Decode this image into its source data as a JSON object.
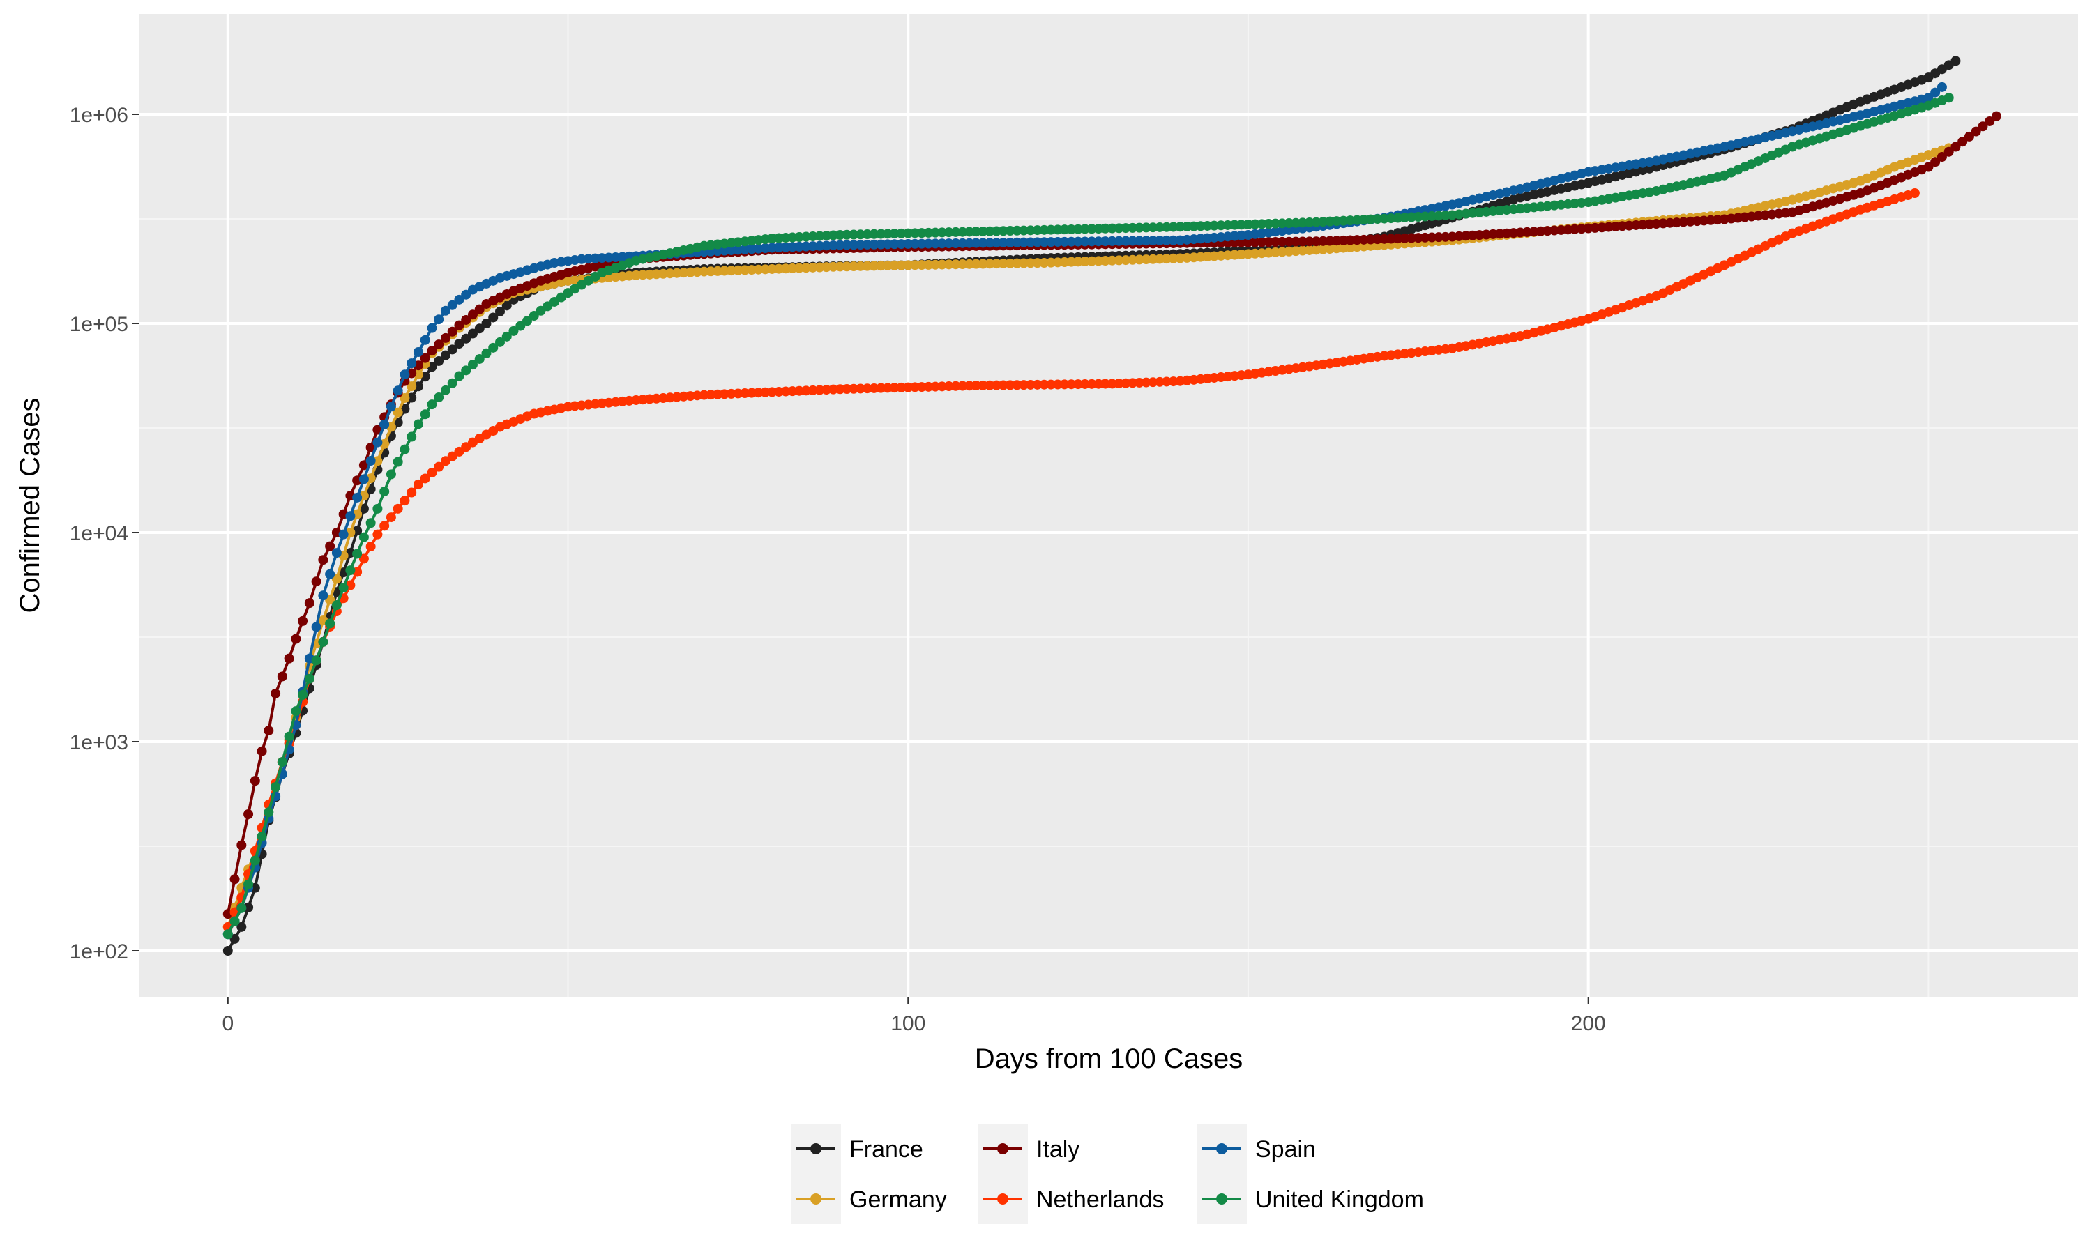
{
  "chart_data": {
    "type": "line",
    "xlabel": "Days from 100 Cases",
    "ylabel": "Confirmed Cases",
    "xlim": [
      -13,
      272
    ],
    "ylim_log10": [
      1.78,
      6.48
    ],
    "log_scale_y": true,
    "grid": true,
    "legend_position": "bottom",
    "x_ticks": [
      0,
      100,
      200
    ],
    "x_tick_labels": [
      "0",
      "100",
      "200"
    ],
    "y_ticks": [
      100,
      1000,
      10000,
      100000,
      1000000
    ],
    "y_tick_labels": [
      "1e+02",
      "1e+03",
      "1e+04",
      "1e+05",
      "1e+06"
    ],
    "series": [
      {
        "name": "France",
        "color": "#222222",
        "x": [
          0,
          2,
          4,
          6,
          8,
          10,
          12,
          14,
          16,
          18,
          20,
          22,
          24,
          26,
          28,
          30,
          34,
          38,
          42,
          46,
          50,
          60,
          70,
          80,
          90,
          100,
          120,
          140,
          160,
          170,
          180,
          190,
          200,
          210,
          220,
          230,
          240,
          250,
          254
        ],
        "y": [
          100,
          130,
          200,
          420,
          700,
          1100,
          1800,
          3000,
          5200,
          8000,
          13000,
          20000,
          29000,
          39000,
          50000,
          62000,
          80000,
          100000,
          130000,
          150000,
          160000,
          175000,
          182000,
          185000,
          188000,
          190000,
          205000,
          215000,
          230000,
          260000,
          320000,
          400000,
          470000,
          560000,
          680000,
          850000,
          1150000,
          1500000,
          1800000
        ]
      },
      {
        "name": "Germany",
        "color": "#d9a025",
        "x": [
          0,
          2,
          4,
          6,
          8,
          10,
          12,
          14,
          16,
          18,
          20,
          22,
          24,
          26,
          28,
          30,
          34,
          38,
          42,
          46,
          50,
          60,
          70,
          80,
          90,
          100,
          120,
          140,
          160,
          180,
          200,
          220,
          230,
          240,
          245,
          250,
          253
        ],
        "y": [
          130,
          200,
          300,
          500,
          800,
          1300,
          2300,
          3800,
          6000,
          10000,
          15000,
          22000,
          32000,
          44000,
          57000,
          72000,
          95000,
          120000,
          140000,
          150000,
          160000,
          170000,
          177000,
          182000,
          187000,
          190000,
          195000,
          205000,
          225000,
          250000,
          290000,
          330000,
          390000,
          480000,
          560000,
          640000,
          690000
        ]
      },
      {
        "name": "Italy",
        "color": "#7a0000",
        "x": [
          0,
          1,
          2,
          3,
          4,
          5,
          6,
          7,
          8,
          9,
          10,
          12,
          14,
          16,
          18,
          20,
          22,
          24,
          26,
          28,
          30,
          34,
          38,
          42,
          46,
          50,
          55,
          60,
          70,
          80,
          100,
          120,
          140,
          160,
          180,
          200,
          220,
          230,
          240,
          250,
          255,
          260
        ],
        "y": [
          150,
          220,
          320,
          450,
          650,
          900,
          1130,
          1700,
          2050,
          2500,
          3100,
          4600,
          7400,
          10000,
          15000,
          21000,
          31000,
          41000,
          53000,
          63000,
          74000,
          98000,
          124000,
          143000,
          160000,
          175000,
          190000,
          203000,
          215000,
          225000,
          232000,
          237000,
          242000,
          247000,
          260000,
          285000,
          315000,
          340000,
          420000,
          560000,
          740000,
          980000
        ]
      },
      {
        "name": "Netherlands",
        "color": "#ff3300",
        "x": [
          0,
          2,
          4,
          6,
          8,
          10,
          12,
          14,
          16,
          18,
          20,
          22,
          25,
          28,
          32,
          36,
          40,
          45,
          50,
          60,
          70,
          80,
          90,
          100,
          110,
          120,
          130,
          140,
          150,
          160,
          170,
          180,
          190,
          200,
          210,
          220,
          230,
          240,
          248
        ],
        "y": [
          130,
          180,
          300,
          500,
          800,
          1200,
          2000,
          3000,
          4200,
          5600,
          7500,
          9800,
          13000,
          17000,
          22000,
          27000,
          32000,
          37000,
          40000,
          43000,
          45500,
          47000,
          48500,
          49500,
          50500,
          51000,
          51500,
          53000,
          57000,
          63000,
          70000,
          76000,
          87000,
          105000,
          135000,
          190000,
          270000,
          350000,
          420000
        ]
      },
      {
        "name": "Spain",
        "color": "#0d5c9e",
        "x": [
          0,
          2,
          4,
          6,
          8,
          10,
          12,
          14,
          16,
          18,
          20,
          22,
          24,
          26,
          28,
          30,
          32,
          34,
          36,
          38,
          40,
          44,
          48,
          52,
          60,
          70,
          80,
          90,
          100,
          120,
          140,
          150,
          160,
          170,
          180,
          190,
          200,
          210,
          220,
          230,
          240,
          250,
          252
        ],
        "y": [
          120,
          160,
          250,
          430,
          700,
          1200,
          2500,
          5000,
          8000,
          12000,
          18000,
          27000,
          40000,
          57000,
          73000,
          95000,
          115000,
          130000,
          145000,
          155000,
          165000,
          180000,
          195000,
          203000,
          210000,
          220000,
          230000,
          237000,
          240000,
          245000,
          250000,
          265000,
          290000,
          320000,
          370000,
          440000,
          530000,
          600000,
          700000,
          830000,
          990000,
          1200000,
          1350000
        ]
      },
      {
        "name": "United Kingdom",
        "color": "#138a47",
        "x": [
          0,
          2,
          4,
          6,
          8,
          10,
          12,
          14,
          16,
          18,
          20,
          22,
          24,
          26,
          28,
          30,
          34,
          38,
          42,
          46,
          50,
          55,
          60,
          70,
          80,
          90,
          100,
          120,
          140,
          160,
          180,
          200,
          210,
          220,
          230,
          240,
          250,
          253
        ],
        "y": [
          120,
          160,
          270,
          460,
          800,
          1400,
          2000,
          3000,
          4500,
          6600,
          9500,
          13000,
          19000,
          25000,
          33000,
          41000,
          56000,
          72000,
          92000,
          115000,
          140000,
          175000,
          200000,
          235000,
          255000,
          265000,
          270000,
          280000,
          290000,
          305000,
          330000,
          380000,
          430000,
          510000,
          700000,
          880000,
          1100000,
          1200000
        ]
      }
    ]
  },
  "legend": {
    "rows": [
      [
        {
          "label": "France",
          "color": "#222222"
        },
        {
          "label": "Italy",
          "color": "#7a0000"
        },
        {
          "label": "Spain",
          "color": "#0d5c9e"
        }
      ],
      [
        {
          "label": "Germany",
          "color": "#d9a025"
        },
        {
          "label": "Netherlands",
          "color": "#ff3300"
        },
        {
          "label": "United Kingdom",
          "color": "#138a47"
        }
      ]
    ]
  },
  "colors": {
    "panel_background": "#ebebeb",
    "grid_major": "#ffffff",
    "grid_minor": "#f5f5f5",
    "legend_key_background": "#f2f2f2"
  }
}
